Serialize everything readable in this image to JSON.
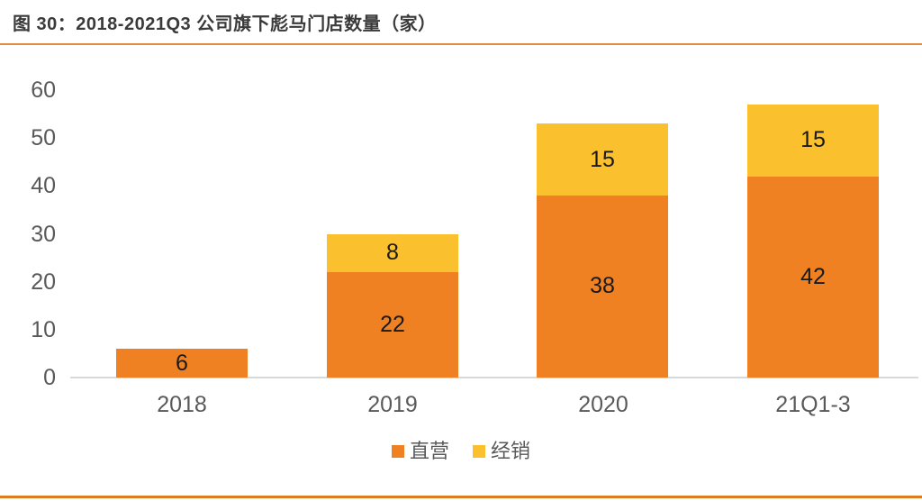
{
  "header": {
    "title": "图 30：2018-2021Q3 公司旗下彪马门店数量（家）"
  },
  "chart_data": {
    "type": "bar",
    "stacked": true,
    "title": "图 30：2018-2021Q3 公司旗下彪马门店数量（家）",
    "categories": [
      "2018",
      "2019",
      "2020",
      "21Q1-3"
    ],
    "series": [
      {
        "name": "直营",
        "color": "#F08122",
        "values": [
          6,
          22,
          38,
          42
        ]
      },
      {
        "name": "经销",
        "color": "#FBC02D",
        "values": [
          0,
          8,
          15,
          15
        ]
      }
    ],
    "totals": [
      6,
      30,
      53,
      57
    ],
    "xlabel": "",
    "ylabel": "",
    "ylim": [
      0,
      60
    ],
    "yticks": [
      0,
      10,
      20,
      30,
      40,
      50,
      60
    ],
    "grid": false,
    "legend_position": "bottom",
    "data_labels": true
  },
  "colors": {
    "series_direct": "#F08122",
    "series_distribution": "#FBC02D",
    "title_text": "#3A3A3A",
    "axis_text": "#595959",
    "data_label_text": "#1A1A1A",
    "axis_line": "#D9D9D9",
    "rule_top": "#DF8B42",
    "rule_bottom": "#DD7D22"
  }
}
